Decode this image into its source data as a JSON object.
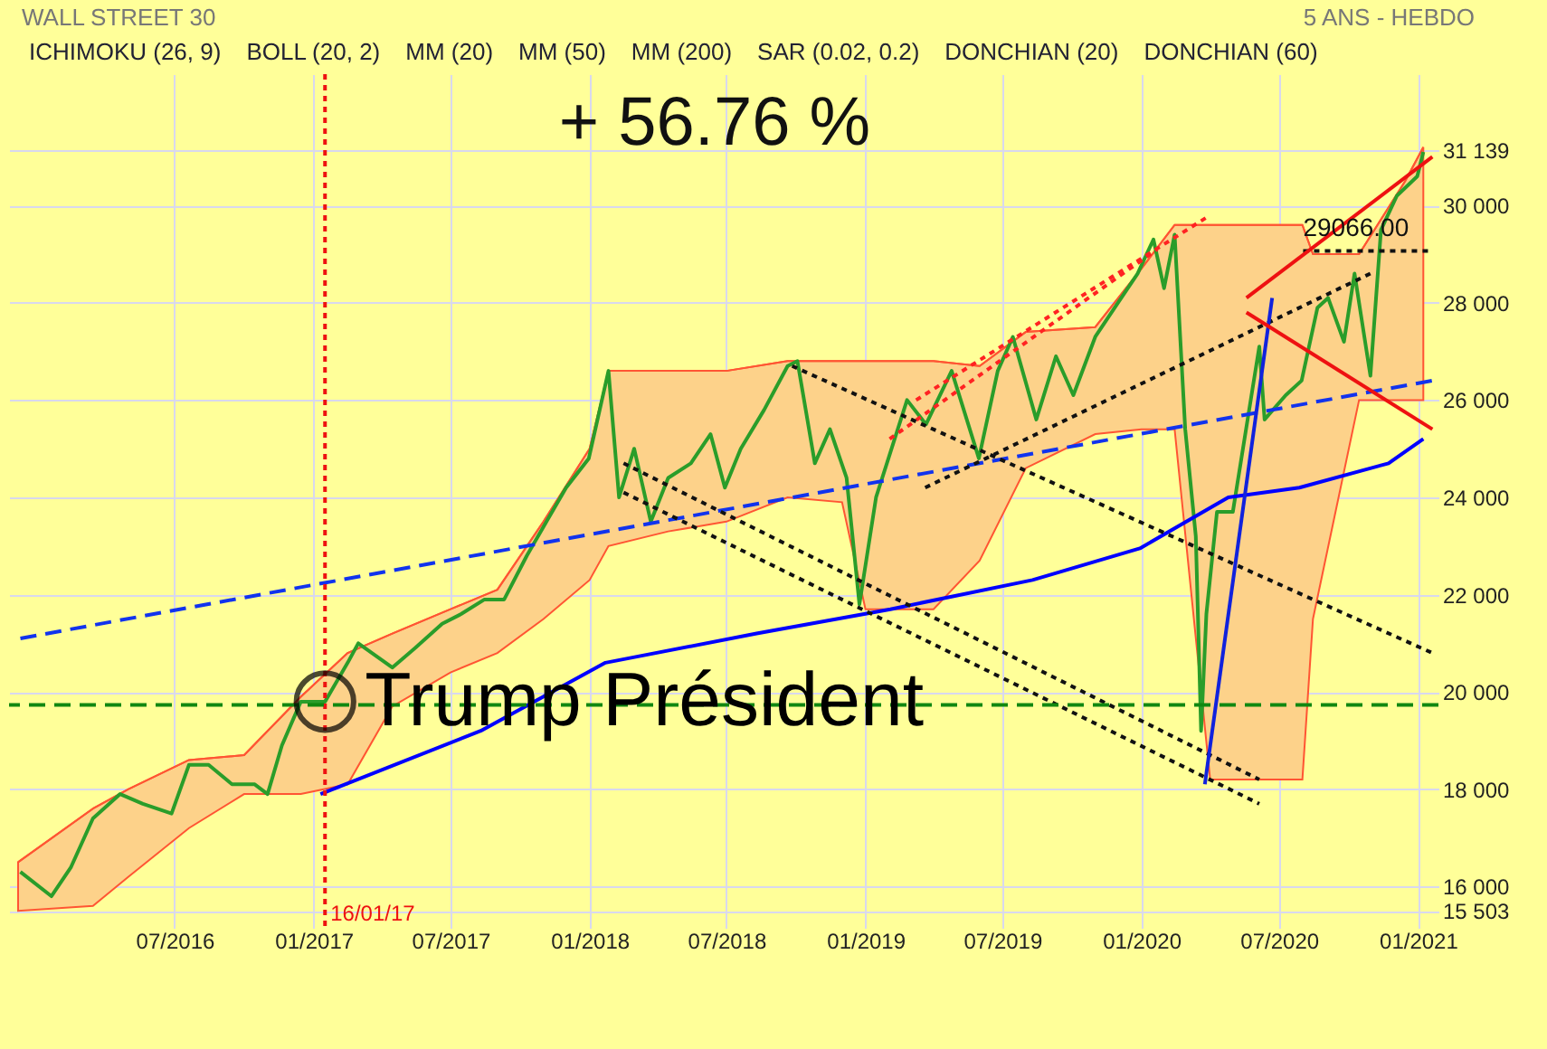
{
  "chart_data": {
    "type": "line",
    "title": "WALL STREET 30",
    "subtitle": "5 ANS - HEBDO",
    "annotations": [
      "+ 56.76 %",
      "ICHIMOKU (26, 9)",
      "BOLL (20, 2)",
      "MM (20)",
      "MM (50)",
      "MM (200)",
      "SAR (0.02, 0.2)",
      "DONCHIAN (20)",
      "DONCHIAN (60)",
      {
        "text": "Trump Président",
        "x": "2017-01-16",
        "y": 19800
      },
      {
        "text": "29066.00",
        "x": "2020-08-02",
        "y": 29066
      }
    ],
    "xlim": [
      "2015-11-25",
      "2021-01-28"
    ],
    "xticks": [
      {
        "value": "2016-07-01",
        "label": "07/2016"
      },
      {
        "value": "2017-01-01",
        "label": "01/2017"
      },
      {
        "value": "2017-07-01",
        "label": "07/2017"
      },
      {
        "value": "2018-01-01",
        "label": "01/2018"
      },
      {
        "value": "2018-07-01",
        "label": "07/2018"
      },
      {
        "value": "2019-01-01",
        "label": "01/2019"
      },
      {
        "value": "2019-07-01",
        "label": "07/2019"
      },
      {
        "value": "2020-01-01",
        "label": "01/2020"
      },
      {
        "value": "2020-07-01",
        "label": "07/2020"
      },
      {
        "value": "2021-01-01",
        "label": "01/2021"
      }
    ],
    "ylim": [
      15150,
      32700
    ],
    "yticks": [
      {
        "value": 15503,
        "label": "15 503"
      },
      {
        "value": 16000,
        "label": "16 000"
      },
      {
        "value": 18000,
        "label": "18 000"
      },
      {
        "value": 20000,
        "label": "20 000"
      },
      {
        "value": 22000,
        "label": "22 000"
      },
      {
        "value": 24000,
        "label": "24 000"
      },
      {
        "value": 26000,
        "label": "26 000"
      },
      {
        "value": 28000,
        "label": "28 000"
      },
      {
        "value": 30000,
        "label": "30 000"
      },
      {
        "value": 31139,
        "label": "31 139"
      }
    ],
    "grid": true,
    "ref_lines": [
      {
        "axis": "x",
        "value": "2017-01-16",
        "label": "16/01/17",
        "color": "#ee1111",
        "line_style": "dotted"
      },
      {
        "axis": "y",
        "value": 19735,
        "color": "#118811",
        "line_style": "dashed"
      }
    ],
    "series": [
      {
        "color": "#ff5533",
        "x": [
          "2015-12-07",
          "2016-03-15",
          "2016-05-01",
          "2016-07-20",
          "2016-10-01",
          "2016-12-15",
          "2017-02-15",
          "2017-04-15",
          "2017-07-01",
          "2017-09-01",
          "2017-11-01",
          "2018-01-01",
          "2018-01-26",
          "2018-04-15",
          "2018-07-01",
          "2018-09-20",
          "2018-12-01",
          "2019-01-01",
          "2019-04-01",
          "2019-06-01",
          "2019-08-01",
          "2019-11-01",
          "2020-01-01",
          "2020-02-14",
          "2020-04-01",
          "2020-06-15",
          "2020-08-01",
          "2020-08-15",
          "2020-10-15",
          "2020-12-15",
          "2021-01-08"
        ],
        "values": [
          16500,
          17600,
          18000,
          18600,
          18700,
          19900,
          20800,
          21200,
          21700,
          22100,
          23500,
          25000,
          26600,
          26600,
          26600,
          26800,
          26800,
          26800,
          26800,
          26700,
          27400,
          27500,
          28700,
          29600,
          29600,
          29600,
          29600,
          29000,
          29000,
          30500,
          31200
        ],
        "upper": [
          16500,
          17600,
          18000,
          18600,
          18700,
          19900,
          20800,
          21200,
          21700,
          22100,
          23500,
          25000,
          26600,
          26600,
          26600,
          26800,
          26800,
          26800,
          26800,
          26700,
          27400,
          27500,
          28700,
          29600,
          29600,
          29600,
          29600,
          29000,
          29000,
          30500,
          31200
        ],
        "lower": [
          15500,
          15600,
          16200,
          17200,
          17900,
          17900,
          18100,
          19700,
          20400,
          20800,
          21500,
          22300,
          23000,
          23300,
          23500,
          24000,
          23900,
          21700,
          21700,
          22700,
          24600,
          25300,
          25400,
          25400,
          18200,
          18200,
          18200,
          21500,
          26000,
          26000,
          26000
        ]
      },
      {
        "color": "#2a9d2a",
        "line_style": "solid",
        "x": [
          "2015-12-10",
          "2016-01-20",
          "2016-02-15",
          "2016-03-15",
          "2016-04-20",
          "2016-05-20",
          "2016-06-27",
          "2016-07-20",
          "2016-08-15",
          "2016-09-15",
          "2016-10-15",
          "2016-11-01",
          "2016-11-20",
          "2016-12-15",
          "2017-01-16",
          "2017-02-15",
          "2017-03-01",
          "2017-04-15",
          "2017-05-15",
          "2017-06-20",
          "2017-07-15",
          "2017-08-15",
          "2017-09-10",
          "2017-10-10",
          "2017-11-05",
          "2017-12-01",
          "2017-12-31",
          "2018-01-26",
          "2018-02-09",
          "2018-03-01",
          "2018-03-23",
          "2018-04-15",
          "2018-05-15",
          "2018-06-10",
          "2018-06-29",
          "2018-07-20",
          "2018-08-20",
          "2018-09-20",
          "2018-10-03",
          "2018-10-26",
          "2018-11-15",
          "2018-12-07",
          "2018-12-24",
          "2019-01-15",
          "2019-02-25",
          "2019-03-22",
          "2019-04-25",
          "2019-05-31",
          "2019-06-25",
          "2019-07-15",
          "2019-08-15",
          "2019-09-10",
          "2019-10-03",
          "2019-11-01",
          "2019-12-01",
          "2019-12-27",
          "2020-01-17",
          "2020-01-31",
          "2020-02-14",
          "2020-02-28",
          "2020-03-13",
          "2020-03-20",
          "2020-03-27",
          "2020-04-10",
          "2020-05-01",
          "2020-06-05",
          "2020-06-12",
          "2020-07-10",
          "2020-07-31",
          "2020-08-21",
          "2020-09-04",
          "2020-09-25",
          "2020-10-09",
          "2020-10-30",
          "2020-11-13",
          "2020-12-04",
          "2020-12-31",
          "2021-01-08"
        ],
        "values": [
          16300,
          15800,
          16400,
          17400,
          17900,
          17700,
          17500,
          18500,
          18500,
          18100,
          18100,
          17900,
          18900,
          19800,
          19800,
          20600,
          21000,
          20500,
          20900,
          21400,
          21600,
          21900,
          21900,
          22800,
          23500,
          24200,
          24800,
          26600,
          24000,
          25000,
          23500,
          24400,
          24700,
          25300,
          24200,
          25000,
          25800,
          26700,
          26800,
          24700,
          25400,
          24400,
          21800,
          24000,
          26000,
          25500,
          26600,
          24800,
          26600,
          27300,
          25600,
          26900,
          26100,
          27300,
          28000,
          28600,
          29300,
          28300,
          29400,
          25400,
          23200,
          19200,
          21600,
          23700,
          23700,
          27100,
          25600,
          26100,
          26400,
          27900,
          28100,
          27200,
          28600,
          26500,
          29500,
          30200,
          30600,
          31100
        ]
      },
      {
        "color": "#0000ff",
        "line_style": "solid",
        "x": [
          "2017-01-10",
          "2017-08-10",
          "2018-01-22",
          "2018-08-10",
          "2019-02-03",
          "2019-08-10",
          "2019-12-30",
          "2020-04-25",
          "2020-07-28",
          "2020-11-23",
          "2021-01-08"
        ],
        "values": [
          17900,
          19200,
          20600,
          21200,
          21700,
          22300,
          22950,
          24000,
          24200,
          24700,
          25200
        ]
      },
      {
        "color": "#1133ee",
        "line_style": "dashed",
        "x": [
          "2015-12-10",
          "2021-01-20"
        ],
        "values": [
          21100,
          26400
        ]
      },
      {
        "color": "#ff2222",
        "line_style": "dotted",
        "x": [
          "2019-03-09",
          "2020-04-01"
        ],
        "values": [
          26000,
          29800
        ]
      },
      {
        "color": "#ff2222",
        "line_style": "dotted",
        "x": [
          "2019-02-02",
          "2020-01-22"
        ],
        "values": [
          25200,
          29100
        ]
      },
      {
        "color": "#111111",
        "line_style": "dotted",
        "x": [
          "2019-03-21",
          "2020-10-30"
        ],
        "values": [
          24200,
          28600
        ]
      },
      {
        "color": "#111111",
        "line_style": "dotted",
        "x": [
          "2018-09-26",
          "2021-01-20"
        ],
        "values": [
          26700,
          20800
        ]
      },
      {
        "color": "#111111",
        "line_style": "dotted",
        "x": [
          "2018-02-15",
          "2020-06-05"
        ],
        "values": [
          24700,
          18200
        ]
      },
      {
        "color": "#111111",
        "line_style": "dotted",
        "x": [
          "2018-02-15",
          "2020-06-05"
        ],
        "values": [
          24100,
          17700
        ]
      },
      {
        "color": "#111111",
        "line_style": "dotted",
        "x": [
          "2020-08-02",
          "2021-01-20"
        ],
        "values": [
          29066,
          29066
        ]
      },
      {
        "color": "#1122dd",
        "line_style": "solid",
        "x": [
          "2020-03-25",
          "2020-06-22"
        ],
        "values": [
          18100,
          28100
        ]
      },
      {
        "color": "#ee1111",
        "line_style": "solid",
        "x": [
          "2020-05-19",
          "2021-01-20"
        ],
        "values": [
          28100,
          31000
        ]
      },
      {
        "color": "#ee1111",
        "line_style": "solid",
        "x": [
          "2020-05-19",
          "2021-01-20"
        ],
        "values": [
          27800,
          25400
        ]
      }
    ]
  }
}
